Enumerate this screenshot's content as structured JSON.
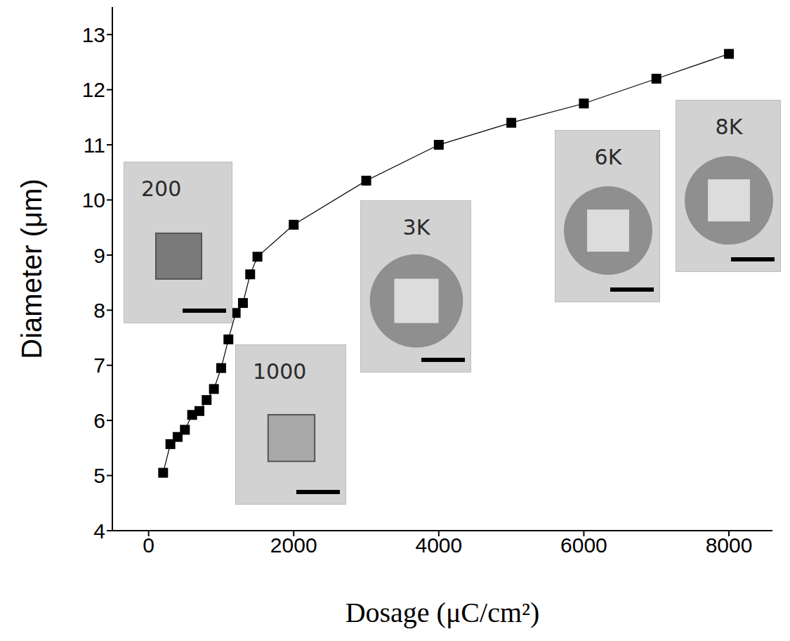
{
  "chart_data": {
    "type": "line",
    "xlabel": "Dosage (μC/cm²)",
    "ylabel": "Diameter (μm)",
    "x": [
      200,
      300,
      400,
      500,
      600,
      700,
      800,
      900,
      1000,
      1100,
      1200,
      1300,
      1400,
      1500,
      2000,
      3000,
      4000,
      5000,
      6000,
      7000,
      8000
    ],
    "values": [
      5.05,
      5.57,
      5.7,
      5.83,
      6.1,
      6.17,
      6.37,
      6.57,
      6.95,
      7.47,
      7.95,
      8.13,
      8.65,
      8.97,
      9.55,
      10.35,
      11.0,
      11.4,
      11.75,
      12.2,
      12.65
    ],
    "color": "#000000",
    "marker": "square",
    "xlim": [
      -500,
      8600
    ],
    "ylim": [
      4,
      13.5
    ],
    "xticks": [
      0,
      2000,
      4000,
      6000,
      8000
    ],
    "yticks": [
      4,
      5,
      6,
      7,
      8,
      9,
      10,
      11,
      12,
      13
    ],
    "annotations": [
      "200",
      "1000",
      "3K",
      "6K",
      "8K"
    ]
  }
}
